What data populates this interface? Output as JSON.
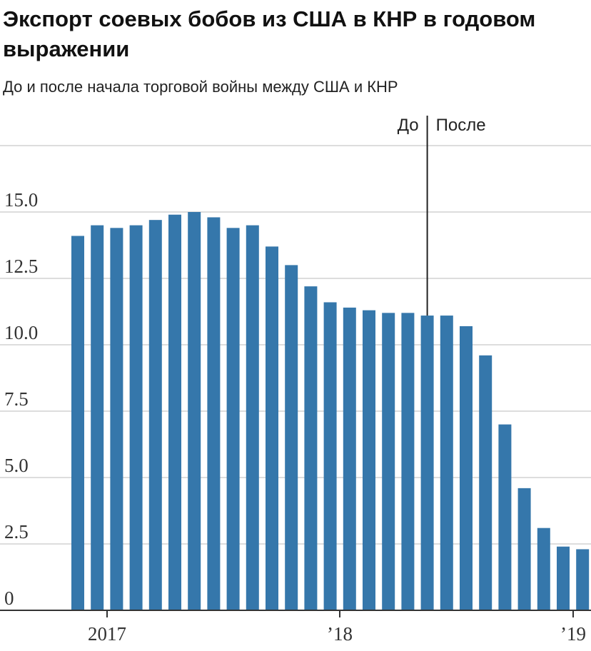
{
  "header": {
    "title": "Экспорт соевых бобов из США в КНР в годовом выражении",
    "subtitle": "До и после начала торговой войны между США и КНР"
  },
  "colors": {
    "bar": "#3577ab",
    "grid": "#dddddd",
    "axis": "#333333",
    "text": "#222222"
  },
  "chart_data": {
    "type": "bar",
    "title": "Экспорт соевых бобов из США в КНР в годовом выражении",
    "subtitle": "До и после начала торговой войны между США и КНР",
    "xlabel": "",
    "ylabel": "",
    "ylim": [
      0,
      17.5
    ],
    "y_ticks": [
      0,
      2.5,
      5.0,
      7.5,
      10.0,
      12.5,
      15.0
    ],
    "y_tick_labels": [
      "0",
      "2.5",
      "5.0",
      "7.5",
      "10.0",
      "12.5",
      "15.0"
    ],
    "grid": true,
    "x_tick_labels": [
      {
        "label": "2017",
        "bar_index": 1
      },
      {
        "label": "’18",
        "bar_index": 13
      },
      {
        "label": "’19",
        "bar_index": 25
      }
    ],
    "categories": [
      "1",
      "2",
      "3",
      "4",
      "5",
      "6",
      "7",
      "8",
      "9",
      "10",
      "11",
      "12",
      "13",
      "14",
      "15",
      "16",
      "17",
      "18",
      "19",
      "20",
      "21",
      "22",
      "23",
      "24",
      "25",
      "26",
      "27"
    ],
    "values": [
      14.1,
      14.5,
      14.4,
      14.5,
      14.7,
      14.9,
      15.0,
      14.8,
      14.4,
      14.5,
      13.7,
      13.0,
      12.2,
      11.6,
      11.4,
      11.3,
      11.2,
      11.2,
      11.1,
      11.1,
      10.7,
      9.6,
      7.0,
      4.6,
      3.1,
      2.4,
      2.3
    ],
    "annotation": {
      "before_label": "До",
      "after_label": "После",
      "bar_index": 18
    }
  }
}
